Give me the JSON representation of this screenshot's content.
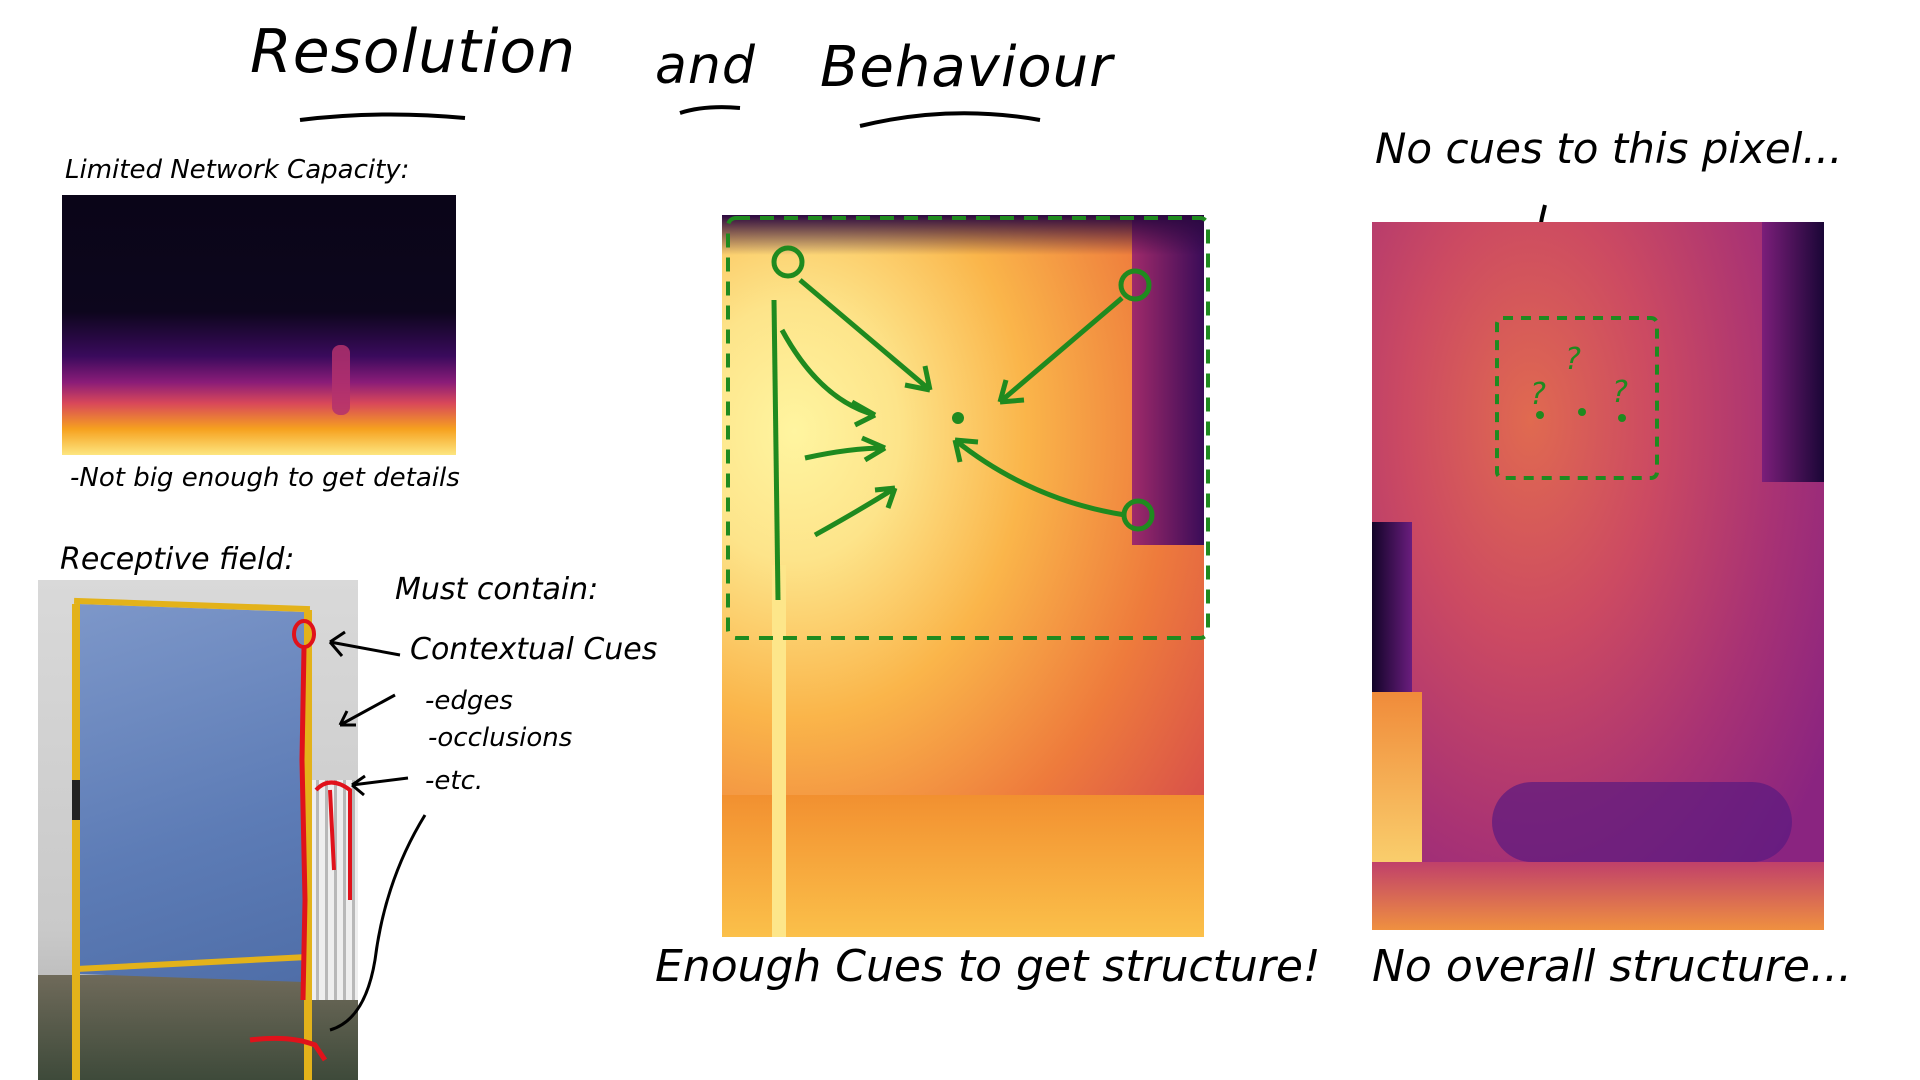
{
  "title": {
    "w1": "Resolution",
    "w2": "and",
    "w3": "Behaviour"
  },
  "limited": {
    "label": "Limited Network Capacity:",
    "note": "-Not big enough to get details"
  },
  "receptive": {
    "label": "Receptive field:",
    "must": "Must contain:",
    "cues": "Contextual Cues",
    "edges": "-edges",
    "occlusions": "-occlusions",
    "etc": "-etc."
  },
  "middle": {
    "caption": "Enough Cues to get structure!"
  },
  "right": {
    "top_note": "No cues to this pixel...",
    "caption": "No overall structure...",
    "q": "?"
  },
  "colors": {
    "annotation_green": "#1f8a1f",
    "annotation_red": "#e0121b",
    "ink": "#000000"
  }
}
